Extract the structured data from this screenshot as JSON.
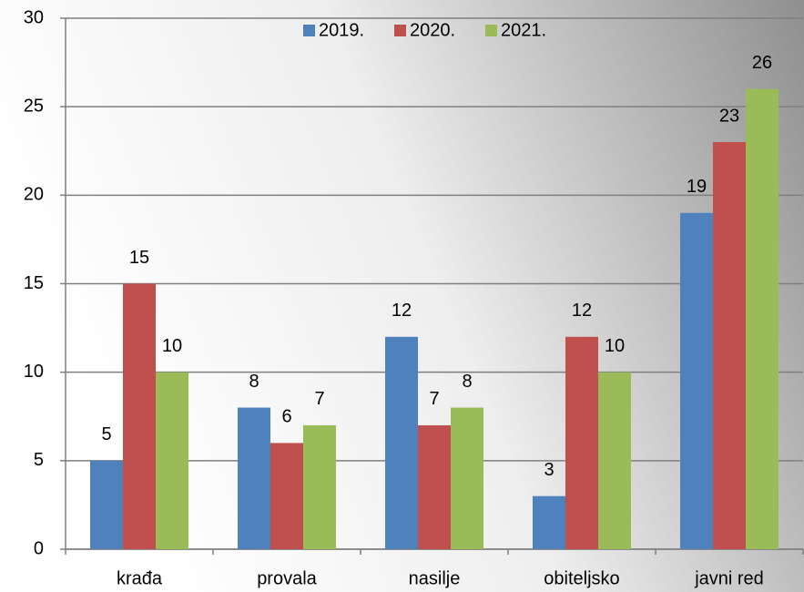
{
  "chart_data": {
    "type": "bar",
    "categories": [
      "krađa",
      "provala",
      "nasilje",
      "obiteljsko",
      "javni red"
    ],
    "series": [
      {
        "name": "2019.",
        "color": "#4f81bd",
        "values": [
          5,
          8,
          12,
          3,
          19
        ]
      },
      {
        "name": "2020.",
        "color": "#c0504d",
        "values": [
          15,
          6,
          7,
          12,
          23
        ]
      },
      {
        "name": "2021.",
        "color": "#9bbb59",
        "values": [
          10,
          7,
          8,
          10,
          26
        ]
      }
    ],
    "ylim": [
      0,
      30
    ],
    "yticks": [
      0,
      5,
      10,
      15,
      20,
      25,
      30
    ],
    "grid": true,
    "legend": "top"
  }
}
